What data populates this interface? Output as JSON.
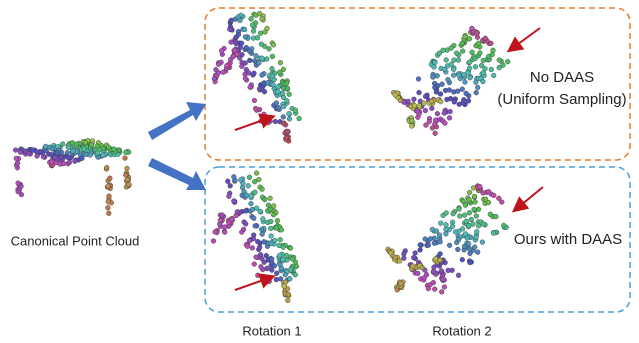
{
  "labels": {
    "canonical": "Canonical Point Cloud",
    "no_daas": "No DAAS",
    "no_daas_sub": "(Uniform Sampling)",
    "ours": "Ours with DAAS",
    "rotation_1": "Rotation 1",
    "rotation_2": "Rotation 2"
  }
}
